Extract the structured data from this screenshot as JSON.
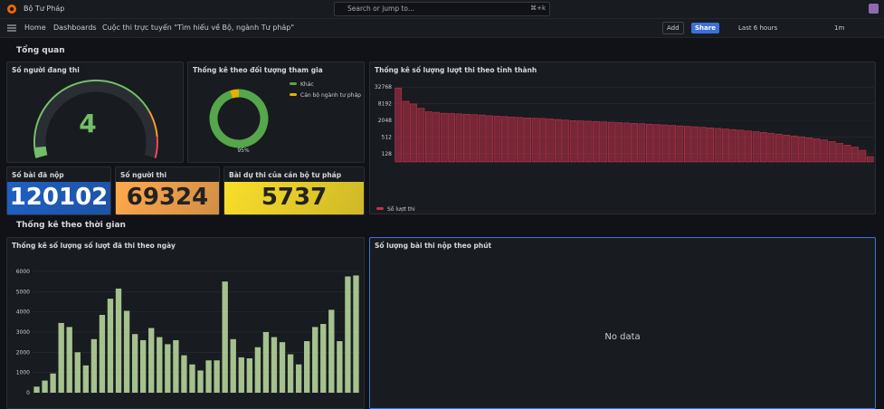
{
  "nav": {
    "org": "Bộ Tư Pháp",
    "search": "Search or jump to...",
    "shortcut": "⌘+k"
  },
  "breadcrumb": [
    "Home",
    "Dashboards",
    "Cuộc thi trực tuyến \"Tìm hiểu về Bộ, ngành Tư pháp\""
  ],
  "toolbar": {
    "add": "Add",
    "share": "Share",
    "time_range": "Last 6 hours",
    "refresh": "1m"
  },
  "sections": [
    "Tổng quan",
    "Thống kê theo thời gian"
  ],
  "chart_data": [
    {
      "type": "gauge",
      "title": "Số người đang thi",
      "value": 4,
      "color": "#73bf69"
    },
    {
      "type": "pie",
      "title": "Thống kê theo đối tượng tham gia",
      "series": [
        {
          "name": "Khác",
          "color": "#56a64b",
          "values": [
            95
          ],
          "value_labels": [
            "95%"
          ]
        },
        {
          "name": "Cán bộ ngành tư pháp",
          "color": "#e0b400",
          "values": [
            5
          ]
        }
      ]
    },
    {
      "type": "bar",
      "title": "Thống kê số lượng lượt thi theo tỉnh thành",
      "log_scale": true,
      "grid": true,
      "ylim": [
        64,
        65536
      ],
      "yticks": [
        128,
        512,
        2048,
        8192,
        32768
      ],
      "categories": [
        null,
        null,
        null,
        null,
        null,
        null,
        null,
        null,
        null,
        null,
        null,
        null,
        null,
        null,
        null,
        null,
        null,
        null,
        null,
        null,
        null,
        null,
        null,
        null,
        null,
        null,
        null,
        null,
        null,
        null,
        null,
        null,
        null,
        null,
        null,
        null,
        null,
        null,
        null,
        null,
        null,
        null,
        null,
        null,
        null,
        null,
        null,
        null,
        null,
        null,
        null,
        null,
        null,
        null,
        null,
        null,
        null,
        null,
        null,
        null,
        null,
        null,
        null
      ],
      "series": [
        {
          "name": "Số lượt thi",
          "color": "#c4314b",
          "values": [
            30000,
            10000,
            8000,
            5600,
            4200,
            4000,
            3700,
            3600,
            3500,
            3400,
            3300,
            3200,
            3000,
            2900,
            2800,
            2700,
            2600,
            2500,
            2450,
            2400,
            2300,
            2200,
            2100,
            2000,
            1950,
            1900,
            1850,
            1800,
            1750,
            1700,
            1650,
            1600,
            1550,
            1500,
            1450,
            1400,
            1350,
            1300,
            1250,
            1200,
            1150,
            1100,
            1050,
            1000,
            950,
            900,
            850,
            800,
            750,
            700,
            650,
            600,
            560,
            520,
            480,
            440,
            400,
            350,
            300,
            260,
            220,
            170,
            100
          ]
        }
      ]
    },
    {
      "type": "stat",
      "title": "Số bài đã nộp",
      "value": 120102,
      "color": "#1f60c4"
    },
    {
      "type": "stat",
      "title": "Số người thi",
      "value": 69324,
      "color": "#ffa94d"
    },
    {
      "type": "stat",
      "title": "Bài dự thi của cán bộ tư pháp",
      "value": 5737,
      "color": "#fade2a"
    },
    {
      "type": "bar",
      "title": "Thống kê số lượng số lượt đã thi theo ngày",
      "grid": true,
      "color": "#b5d49a",
      "ylim": [
        0,
        6400
      ],
      "yticks": [
        0,
        1000,
        2000,
        3000,
        4000,
        5000,
        6000
      ],
      "categories": [
        null,
        null,
        null,
        null,
        null,
        null,
        null,
        null,
        null,
        null,
        null,
        null,
        null,
        null,
        null,
        null,
        null,
        null,
        null,
        null,
        null,
        null,
        null,
        null,
        null,
        null,
        null,
        null,
        null,
        null,
        null,
        null,
        null,
        null,
        null,
        null,
        null,
        null,
        null,
        null
      ],
      "values": [
        300,
        600,
        950,
        3450,
        3250,
        2000,
        1350,
        2650,
        3850,
        4650,
        5150,
        4050,
        2900,
        2600,
        3200,
        2750,
        2400,
        2600,
        1850,
        1400,
        1100,
        1600,
        1600,
        5500,
        2650,
        1750,
        1700,
        2250,
        3000,
        2750,
        2500,
        1900,
        1400,
        2550,
        3250,
        3400,
        4100,
        2550,
        5750,
        5800
      ]
    },
    {
      "type": "timeseries",
      "title": "Số lượng bài thi nộp theo phút",
      "message": "No data"
    }
  ]
}
